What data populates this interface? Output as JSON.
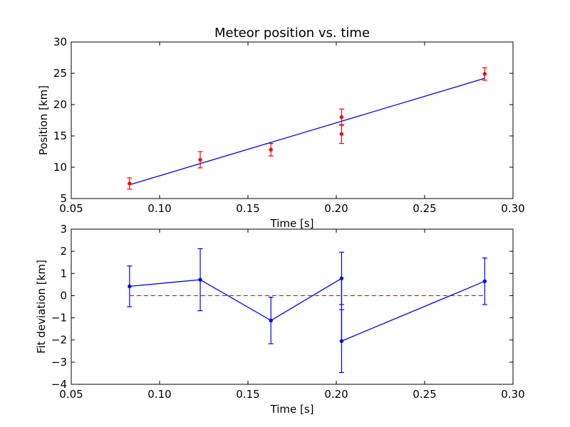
{
  "colors": {
    "measurement": "#ff0000",
    "fit": "#0000ff",
    "deviation": "#0000ff",
    "zero_line": "#ff0000",
    "axes": "#000000"
  },
  "chart_data": [
    {
      "type": "scatter",
      "title": "Meteor position vs. time",
      "xlabel": "Time [s]",
      "ylabel": "Position [km]",
      "xlim": [
        0.05,
        0.3
      ],
      "ylim": [
        5,
        30
      ],
      "xticks": [
        0.05,
        0.1,
        0.15,
        0.2,
        0.25,
        0.3
      ],
      "xtick_labels": [
        "0.05",
        "0.10",
        "0.15",
        "0.20",
        "0.25",
        "0.30"
      ],
      "yticks": [
        5,
        10,
        15,
        20,
        25,
        30
      ],
      "ytick_labels": [
        "5",
        "10",
        "15",
        "20",
        "25",
        "30"
      ],
      "grid": false,
      "series": [
        {
          "kind": "errorbar-points",
          "color": "#ff0000",
          "x": [
            0.083,
            0.123,
            0.163,
            0.203,
            0.203,
            0.284
          ],
          "y": [
            7.4,
            11.2,
            12.8,
            18.0,
            15.3,
            24.9
          ],
          "yerr": [
            0.9,
            1.3,
            1.0,
            1.3,
            1.5,
            1.0
          ]
        },
        {
          "kind": "fit-line",
          "color": "#0000ff",
          "x": [
            0.083,
            0.284
          ],
          "y": [
            7.2,
            24.2
          ]
        }
      ]
    },
    {
      "type": "line",
      "title": "",
      "xlabel": "Time [s]",
      "ylabel": "Fit deviation [km]",
      "xlim": [
        0.05,
        0.3
      ],
      "ylim": [
        -4,
        3
      ],
      "xticks": [
        0.05,
        0.1,
        0.15,
        0.2,
        0.25,
        0.3
      ],
      "xtick_labels": [
        "0.05",
        "0.10",
        "0.15",
        "0.20",
        "0.25",
        "0.30"
      ],
      "yticks": [
        -4,
        -3,
        -2,
        -1,
        0,
        1,
        2,
        3
      ],
      "ytick_labels": [
        "−4",
        "−3",
        "−2",
        "−1",
        "0",
        "1",
        "2",
        "3"
      ],
      "grid": false,
      "series": [
        {
          "kind": "errorbar-line",
          "color": "#0000ff",
          "x": [
            0.083,
            0.123,
            0.163,
            0.203,
            0.203,
            0.284
          ],
          "y": [
            0.42,
            0.72,
            -1.12,
            0.78,
            -2.05,
            0.65
          ],
          "yerr": [
            0.92,
            1.4,
            1.05,
            1.18,
            1.42,
            1.05
          ]
        },
        {
          "kind": "reference-dashed",
          "color": "#ff0000",
          "x": [
            0.083,
            0.284
          ],
          "y": [
            0,
            0
          ]
        }
      ]
    }
  ]
}
